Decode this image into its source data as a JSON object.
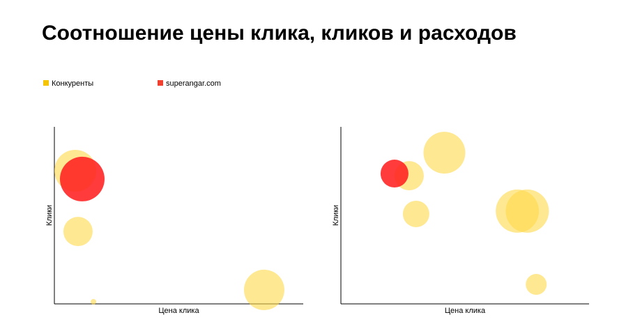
{
  "chart_data": [
    {
      "type": "bubble",
      "title": "Соотношение цены клика, кликов и расходов",
      "xlabel": "Цена клика",
      "ylabel": "Клики",
      "xlim": [
        0,
        100
      ],
      "ylim": [
        0,
        100
      ],
      "legend": "top-left",
      "series": [
        {
          "name": "Конкуренты",
          "color": "#ffd84a",
          "x": [
            8.4,
            9.5,
            15.7,
            84.3
          ],
          "y": [
            75.2,
            40.9,
            1.2,
            7.9
          ],
          "sizes": [
            30,
            21,
            4,
            29
          ]
        },
        {
          "name": "superangar.com",
          "color": "#ff2020",
          "x": [
            11.2
          ],
          "y": [
            70.5
          ],
          "sizes": [
            32
          ]
        }
      ]
    },
    {
      "type": "bubble",
      "xlabel": "Цена клика",
      "ylabel": "Клики",
      "xlim": [
        0,
        100
      ],
      "ylim": [
        0,
        100
      ],
      "series": [
        {
          "color": "#ffd84a",
          "x": [
            41.7,
            27.5,
            30.3,
            71.1,
            75.1,
            78.7
          ],
          "y": [
            85.4,
            72.4,
            50.8,
            52.4,
            52.4,
            11.0
          ],
          "sizes": [
            30,
            21,
            19,
            31,
            31,
            15
          ]
        },
        {
          "color": "#ff2020",
          "x": [
            21.6
          ],
          "y": [
            73.6
          ],
          "sizes": [
            20
          ]
        }
      ]
    }
  ]
}
